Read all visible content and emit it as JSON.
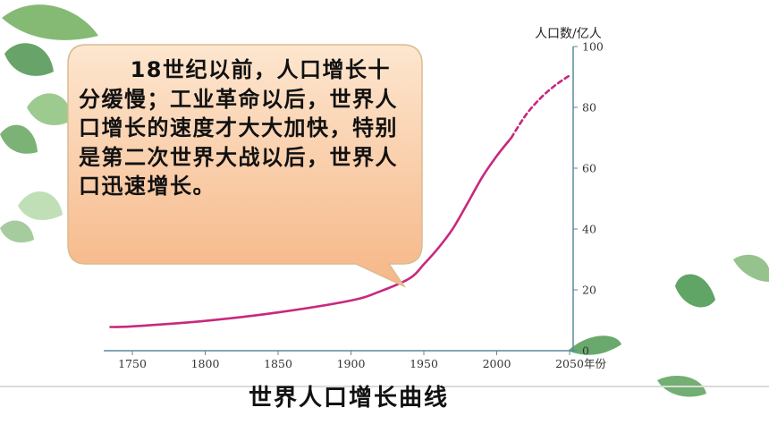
{
  "callout": {
    "text": "18世纪以前，人口增长十分缓慢；工业革命以后，世界人口增长的速度才大大加快，特别是第二次世界大战以后，世界人口迅速增长。"
  },
  "caption": "世界人口增长曲线",
  "colors": {
    "curve": "#c8287e",
    "callout_fill_top": "#fde6cf",
    "callout_fill_bottom": "#f6b787",
    "callout_stroke": "#d8bc92",
    "axis": "#5a8a9c",
    "divider": "#d8ddd7",
    "leaf": "#5aa05a"
  },
  "chart_data": {
    "type": "line",
    "title": "世界人口增长曲线",
    "xlabel": "年份",
    "ylabel": "人口数/亿人",
    "xlim": [
      1735,
      2050
    ],
    "ylim": [
      0,
      100
    ],
    "x_ticks": [
      1750,
      1800,
      1850,
      1900,
      1950,
      2000,
      2050
    ],
    "y_ticks": [
      0,
      20,
      40,
      60,
      80,
      100
    ],
    "x_tick_labels": [
      "1750",
      "1800",
      "1850",
      "1900",
      "1950",
      "2000",
      "2050"
    ],
    "y_tick_labels": [
      "0",
      "20",
      "40",
      "60",
      "80",
      "100"
    ],
    "x_unit_label": "年份",
    "grid": false,
    "series": [
      {
        "style": "solid",
        "x": [
          1735,
          1750,
          1800,
          1850,
          1900,
          1920,
          1940,
          1950,
          1960,
          1970,
          1980,
          1990,
          2000,
          2010
        ],
        "y": [
          7.8,
          8.0,
          9.8,
          12.6,
          16.5,
          19.5,
          23.7,
          28.4,
          33.8,
          40.2,
          48.5,
          57.0,
          64.0,
          70.0
        ]
      },
      {
        "style": "dashed",
        "x": [
          2010,
          2020,
          2030,
          2040,
          2050
        ],
        "y": [
          70.0,
          77.5,
          83.0,
          87.2,
          90.5
        ]
      }
    ]
  }
}
